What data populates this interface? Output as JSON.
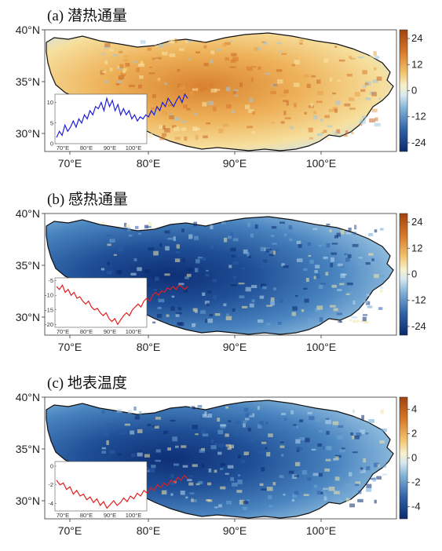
{
  "figure": {
    "lon_ticks": [
      "70°E",
      "80°E",
      "90°E",
      "100°E"
    ],
    "lat_ticks": [
      "40°N",
      "35°N",
      "30°N"
    ],
    "panels": [
      {
        "id": "a",
        "title": "(a) 潜热通量",
        "colorbar": {
          "ticks": [
            "24",
            "12",
            "0",
            "-12",
            "-24"
          ],
          "range": [
            -28,
            28
          ]
        },
        "field": "warm",
        "inset": {
          "color": "#1f1fd6",
          "x_ticks": [
            "70°E",
            "80°E",
            "90°E",
            "100°E"
          ],
          "y_ticks": [
            "10",
            "5",
            "0"
          ],
          "ylim": [
            0,
            12
          ],
          "values": [
            1.5,
            3,
            2,
            4.5,
            3,
            4,
            5.5,
            4,
            6,
            5,
            7,
            6,
            8,
            7,
            9,
            8.5,
            10,
            8,
            11,
            9,
            10.5,
            8,
            9.5,
            7,
            8.5,
            7,
            8,
            6,
            7,
            5.5,
            6.5,
            6,
            7,
            6.5,
            8,
            7,
            9,
            8,
            10,
            9,
            11,
            10,
            9,
            10.5,
            11.5,
            10,
            12,
            11
          ]
        }
      },
      {
        "id": "b",
        "title": "(b) 感热通量",
        "colorbar": {
          "ticks": [
            "24",
            "12",
            "0",
            "-12",
            "-24"
          ],
          "range": [
            -28,
            28
          ]
        },
        "field": "cool",
        "inset": {
          "color": "#e01f1f",
          "x_ticks": [
            "70°E",
            "80°E",
            "90°E",
            "100°E"
          ],
          "y_ticks": [
            "-5",
            "-10",
            "-15",
            "-20"
          ],
          "ylim": [
            -21,
            -4
          ],
          "values": [
            -7,
            -8,
            -6.5,
            -9,
            -8,
            -10,
            -9,
            -11,
            -10.5,
            -12,
            -13,
            -12,
            -14,
            -15,
            -14.5,
            -16,
            -17,
            -16,
            -18,
            -19,
            -18,
            -20,
            -18.5,
            -17,
            -16,
            -17,
            -15,
            -14,
            -13,
            -14,
            -12,
            -11,
            -12,
            -10,
            -9,
            -10,
            -8.5,
            -9,
            -7.5,
            -8,
            -7,
            -8,
            -6.5,
            -7,
            -8,
            -7
          ]
        }
      },
      {
        "id": "c",
        "title": "(c) 地表温度",
        "colorbar": {
          "ticks": [
            "4",
            "2",
            "0",
            "-2",
            "-4"
          ],
          "range": [
            -5,
            5
          ]
        },
        "field": "cool",
        "inset": {
          "color": "#e01f1f",
          "x_ticks": [
            "70°E",
            "80°E",
            "90°E",
            "100°E"
          ],
          "y_ticks": [
            "0",
            "-2",
            "-4"
          ],
          "ylim": [
            -4.8,
            0.5
          ],
          "values": [
            -1.5,
            -2,
            -1.8,
            -2.5,
            -2.2,
            -3,
            -2.6,
            -3.2,
            -3,
            -3.6,
            -3.3,
            -3.9,
            -3.5,
            -4.2,
            -3.8,
            -4.5,
            -4.1,
            -3.7,
            -4.2,
            -3.9,
            -3.4,
            -3.8,
            -3.2,
            -3.5,
            -2.9,
            -3.2,
            -2.6,
            -2.9,
            -2.3,
            -2.6,
            -2,
            -2.3,
            -1.8,
            -2.1,
            -1.5,
            -1.8,
            -1.2,
            -1.5,
            -1,
            -1.3
          ]
        }
      }
    ]
  }
}
